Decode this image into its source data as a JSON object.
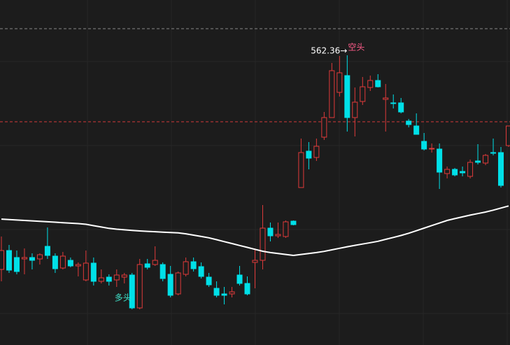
{
  "chart_data": {
    "type": "candlestick",
    "open": [
      501.16,
      506.56,
      504.56,
      504.16,
      504.56,
      504.16,
      507.76,
      504.96,
      501.56,
      503.76,
      502.16,
      498.16,
      502.96,
      497.76,
      498.96,
      498.16,
      498.96,
      499.56,
      490.16,
      502.76,
      502.56,
      502.56,
      499.76,
      494.16,
      499.76,
      503.36,
      501.96,
      498.96,
      495.76,
      494.16,
      494.16,
      499.56,
      497.16,
      503.16,
      503.76,
      512.96,
      510.76,
      510.56,
      514.96,
      524.56,
      534.96,
      533.16,
      538.96,
      544.56,
      551.76,
      556.56,
      544.56,
      549.16,
      553.16,
      555.16,
      549.76,
      548.76,
      548.76,
      543.56,
      542.16,
      537.76,
      535.56,
      535.56,
      528.56,
      529.76,
      529.16,
      527.76,
      532.16,
      531.56,
      534.56,
      534.56,
      536.56
    ],
    "high": [
      510.56,
      508.16,
      506.56,
      507.16,
      505.76,
      505.76,
      513.16,
      505.76,
      506.16,
      504.56,
      503.16,
      506.56,
      504.56,
      501.16,
      499.76,
      501.16,
      500.16,
      500.16,
      504.16,
      504.16,
      507.76,
      503.16,
      502.16,
      500.56,
      504.56,
      504.56,
      503.16,
      500.16,
      497.76,
      496.16,
      496.16,
      502.16,
      499.16,
      507.16,
      519.56,
      514.56,
      514.56,
      515.16,
      515.16,
      538.56,
      537.56,
      538.56,
      546.16,
      560.16,
      562.16,
      562.36,
      553.16,
      556.16,
      556.56,
      556.96,
      554.16,
      551.16,
      550.16,
      544.16,
      545.76,
      540.16,
      537.16,
      537.16,
      530.56,
      530.16,
      530.56,
      532.56,
      536.96,
      534.16,
      538.56,
      536.16,
      542.16
    ],
    "low": [
      497.76,
      500.16,
      499.76,
      499.76,
      501.16,
      502.56,
      504.16,
      500.16,
      501.16,
      501.76,
      499.16,
      497.76,
      496.56,
      497.16,
      496.56,
      496.16,
      497.16,
      489.76,
      489.76,
      501.16,
      502.16,
      497.76,
      493.16,
      493.76,
      499.16,
      500.56,
      498.56,
      496.16,
      493.16,
      491.16,
      493.16,
      496.56,
      493.76,
      495.76,
      501.16,
      509.16,
      510.16,
      510.16,
      513.76,
      524.56,
      529.76,
      532.16,
      538.16,
      544.56,
      550.56,
      540.56,
      539.16,
      548.16,
      552.16,
      553.16,
      540.56,
      547.16,
      545.76,
      541.76,
      539.76,
      535.16,
      534.56,
      524.16,
      527.16,
      527.76,
      527.76,
      527.16,
      531.16,
      530.96,
      533.76,
      524.56,
      536.16
    ],
    "close": [
      506.56,
      500.96,
      500.56,
      504.56,
      503.76,
      505.36,
      505.16,
      501.36,
      504.96,
      502.16,
      502.56,
      502.96,
      497.76,
      498.76,
      497.76,
      499.56,
      499.56,
      490.16,
      502.56,
      501.76,
      503.76,
      498.56,
      493.76,
      500.16,
      503.36,
      501.36,
      499.16,
      496.76,
      493.76,
      493.76,
      494.76,
      497.16,
      494.16,
      503.76,
      512.96,
      510.76,
      511.16,
      514.76,
      513.96,
      534.56,
      532.96,
      536.36,
      544.56,
      557.96,
      557.36,
      544.56,
      548.96,
      553.36,
      555.16,
      553.36,
      550.16,
      548.56,
      546.16,
      542.56,
      539.76,
      535.56,
      535.76,
      528.96,
      529.76,
      528.16,
      528.76,
      531.76,
      531.76,
      533.76,
      534.36,
      525.16,
      542.16
    ],
    "ma": [
      515.54,
      515.42,
      515.28,
      515.16,
      515.04,
      514.9,
      514.78,
      514.66,
      514.52,
      514.38,
      514.26,
      514.06,
      513.66,
      513.28,
      512.9,
      512.66,
      512.48,
      512.32,
      512.16,
      512.04,
      511.94,
      511.82,
      511.72,
      511.6,
      511.34,
      510.96,
      510.58,
      510.2,
      509.66,
      509.1,
      508.56,
      508,
      507.46,
      506.9,
      506.36,
      505.98,
      505.7,
      505.44,
      505.16,
      505.44,
      505.7,
      505.98,
      506.32,
      506.76,
      507.2,
      507.64,
      508.04,
      508.42,
      508.8,
      509.2,
      509.76,
      510.3,
      510.86,
      511.5,
      512.22,
      512.96,
      513.7,
      514.42,
      515.16,
      515.68,
      516.18,
      516.68,
      517.12,
      517.56,
      518.1,
      518.7,
      519.3
    ],
    "ma_color": "#ffffff",
    "up_color": "#e03a3a",
    "down_color": "#00e0e8",
    "ref_lines": [
      {
        "value": 569.96,
        "color": "#888888"
      },
      {
        "value": 543.36,
        "color": "#d23a3a"
      }
    ],
    "ylim": [
      479.56,
      578.16
    ],
    "max_label": "562.36→",
    "bear_label": "空头",
    "bull_label": "多头",
    "bear_color": "#ff5c8a",
    "bull_color": "#3fe0c8"
  }
}
